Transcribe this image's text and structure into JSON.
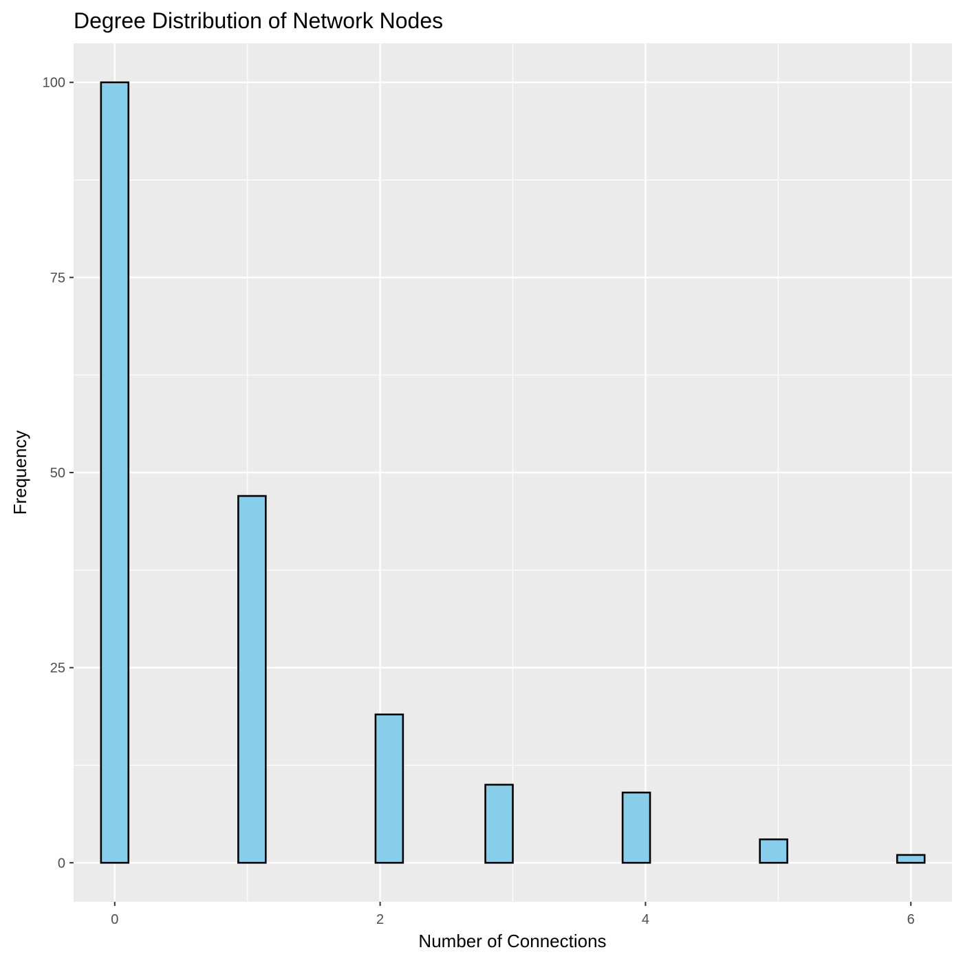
{
  "chart_data": {
    "type": "bar",
    "title": "Degree Distribution of Network Nodes",
    "xlabel": "Number of Connections",
    "ylabel": "Frequency",
    "xlim": [
      -0.31,
      6.31
    ],
    "ylim": [
      -5,
      105
    ],
    "xticks": [
      0,
      2,
      4,
      6
    ],
    "yticks": [
      0,
      25,
      50,
      75,
      100
    ],
    "grid": true,
    "bin_width": 0.2069,
    "bins": [
      {
        "x": 0,
        "count": 100
      },
      {
        "x": 0.2069,
        "count": 0
      },
      {
        "x": 0.4138,
        "count": 0
      },
      {
        "x": 0.6207,
        "count": 0
      },
      {
        "x": 0.8276,
        "count": 0
      },
      {
        "x": 1.0345,
        "count": 47
      },
      {
        "x": 1.2414,
        "count": 0
      },
      {
        "x": 1.4483,
        "count": 0
      },
      {
        "x": 1.6552,
        "count": 0
      },
      {
        "x": 1.8621,
        "count": 0
      },
      {
        "x": 2.069,
        "count": 19
      },
      {
        "x": 2.2759,
        "count": 0
      },
      {
        "x": 2.4828,
        "count": 0
      },
      {
        "x": 2.6897,
        "count": 0
      },
      {
        "x": 2.8966,
        "count": 10
      },
      {
        "x": 3.1034,
        "count": 0
      },
      {
        "x": 3.3103,
        "count": 0
      },
      {
        "x": 3.5172,
        "count": 0
      },
      {
        "x": 3.7241,
        "count": 0
      },
      {
        "x": 3.931,
        "count": 9
      },
      {
        "x": 4.1379,
        "count": 0
      },
      {
        "x": 4.3448,
        "count": 0
      },
      {
        "x": 4.5517,
        "count": 0
      },
      {
        "x": 4.7586,
        "count": 0
      },
      {
        "x": 4.9655,
        "count": 3
      },
      {
        "x": 5.1724,
        "count": 0
      },
      {
        "x": 5.3793,
        "count": 0
      },
      {
        "x": 5.5862,
        "count": 0
      },
      {
        "x": 5.7931,
        "count": 0
      },
      {
        "x": 6.0,
        "count": 1
      }
    ],
    "colors": {
      "bar_fill": "#87CEEB",
      "bar_stroke": "#000000",
      "panel": "#EBEBEB",
      "grid": "#FFFFFF",
      "tick_text": "#4D4D4D"
    }
  }
}
